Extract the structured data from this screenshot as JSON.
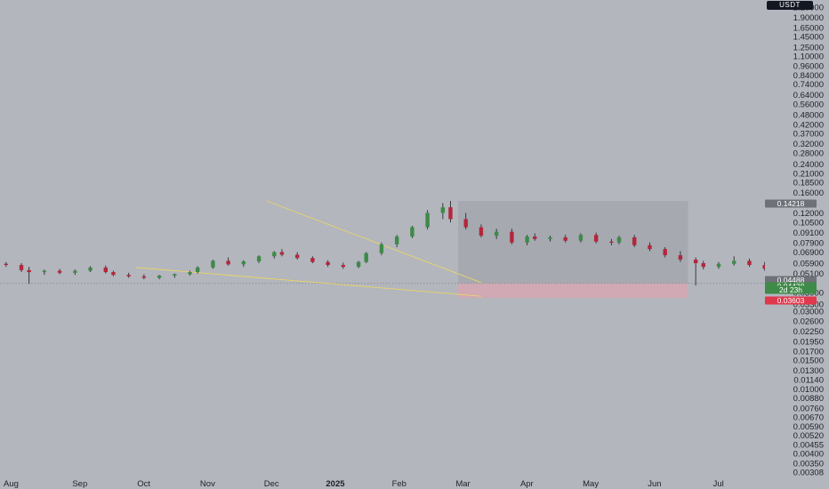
{
  "currency": "USDT",
  "colors": {
    "background": "#b3b6bd",
    "up": "#3e8a48",
    "down": "#b3263c",
    "wedge": "#e9d46a",
    "target_zone": "#a4a7ae",
    "stop_zone": "#d2a9b3"
  },
  "chart_data": {
    "type": "candlestick",
    "y_scale": "log",
    "y_axis_ticks": [
      "2.20000",
      "1.90000",
      "1.65000",
      "1.45000",
      "1.25000",
      "1.10000",
      "0.96000",
      "0.84000",
      "0.74000",
      "0.64000",
      "0.56000",
      "0.48000",
      "0.42000",
      "0.37000",
      "0.32000",
      "0.28000",
      "0.24000",
      "0.21000",
      "0.18500",
      "0.16000",
      "0.12000",
      "0.10500",
      "0.09100",
      "0.07900",
      "0.06900",
      "0.05900",
      "0.05100",
      "0.03900",
      "0.03300",
      "0.03000",
      "0.02600",
      "0.02250",
      "0.01950",
      "0.01700",
      "0.01500",
      "0.01300",
      "0.01140",
      "0.01000",
      "0.00880",
      "0.00760",
      "0.00670",
      "0.00590",
      "0.00520",
      "0.00455",
      "0.00400",
      "0.00350",
      "0.00308"
    ],
    "x_axis_labels": [
      {
        "label": "Aug"
      },
      {
        "label": "Sep"
      },
      {
        "label": "Oct"
      },
      {
        "label": "Nov"
      },
      {
        "label": "Dec"
      },
      {
        "label": "2025",
        "bold": true
      },
      {
        "label": "Feb"
      },
      {
        "label": "Mar"
      },
      {
        "label": "Apr"
      },
      {
        "label": "May"
      },
      {
        "label": "Jun"
      },
      {
        "label": "Jul"
      }
    ],
    "price_tags": [
      {
        "label": "0.14218",
        "value": 0.14218,
        "color": "#6e7178"
      },
      {
        "label": "0.04488",
        "value": 0.04488,
        "color": "#6e7178"
      },
      {
        "label": "0.04438",
        "value": 0.04438,
        "color": "#3e8a48"
      },
      {
        "label": "2d 23h",
        "value": 0.04438,
        "color": "#3e8a48"
      },
      {
        "label": "0.03603",
        "value": 0.03603,
        "color": "#e0384c"
      }
    ],
    "position": {
      "entry": 0.04438,
      "target": 0.14218,
      "stop": 0.03603,
      "start_week": 2025.16,
      "end_week": 2025.46
    },
    "wedge": {
      "upper": [
        [
          2024.91,
          0.14218
        ],
        [
          2025.19,
          0.04488
        ]
      ],
      "lower": [
        [
          2024.74,
          0.0555
        ],
        [
          2025.19,
          0.037
        ]
      ]
    },
    "candles": [
      {
        "t": 2024.55,
        "o": 0.06,
        "h": 0.062,
        "l": 0.057,
        "c": 0.0585
      },
      {
        "t": 2024.57,
        "o": 0.0585,
        "h": 0.06,
        "l": 0.056,
        "c": 0.0575
      },
      {
        "t": 2024.59,
        "o": 0.0575,
        "h": 0.059,
        "l": 0.052,
        "c": 0.0535
      },
      {
        "t": 2024.6,
        "o": 0.0535,
        "h": 0.056,
        "l": 0.044,
        "c": 0.052
      },
      {
        "t": 2024.62,
        "o": 0.052,
        "h": 0.054,
        "l": 0.05,
        "c": 0.053
      },
      {
        "t": 2024.64,
        "o": 0.053,
        "h": 0.0545,
        "l": 0.0505,
        "c": 0.0515
      },
      {
        "t": 2024.66,
        "o": 0.0515,
        "h": 0.054,
        "l": 0.05,
        "c": 0.053
      },
      {
        "t": 2024.68,
        "o": 0.053,
        "h": 0.0565,
        "l": 0.052,
        "c": 0.0555
      },
      {
        "t": 2024.7,
        "o": 0.0555,
        "h": 0.057,
        "l": 0.051,
        "c": 0.052
      },
      {
        "t": 2024.71,
        "o": 0.052,
        "h": 0.053,
        "l": 0.049,
        "c": 0.05
      },
      {
        "t": 2024.73,
        "o": 0.05,
        "h": 0.0515,
        "l": 0.048,
        "c": 0.049
      },
      {
        "t": 2024.75,
        "o": 0.049,
        "h": 0.0505,
        "l": 0.047,
        "c": 0.048
      },
      {
        "t": 2024.77,
        "o": 0.048,
        "h": 0.05,
        "l": 0.047,
        "c": 0.0495
      },
      {
        "t": 2024.79,
        "o": 0.0495,
        "h": 0.051,
        "l": 0.048,
        "c": 0.0505
      },
      {
        "t": 2024.81,
        "o": 0.0505,
        "h": 0.053,
        "l": 0.0495,
        "c": 0.052
      },
      {
        "t": 2024.82,
        "o": 0.052,
        "h": 0.0565,
        "l": 0.051,
        "c": 0.0555
      },
      {
        "t": 2024.84,
        "o": 0.0555,
        "h": 0.062,
        "l": 0.0545,
        "c": 0.061
      },
      {
        "t": 2024.86,
        "o": 0.061,
        "h": 0.064,
        "l": 0.057,
        "c": 0.058
      },
      {
        "t": 2024.88,
        "o": 0.058,
        "h": 0.0615,
        "l": 0.056,
        "c": 0.0605
      },
      {
        "t": 2024.9,
        "o": 0.0605,
        "h": 0.066,
        "l": 0.059,
        "c": 0.065
      },
      {
        "t": 2024.92,
        "o": 0.065,
        "h": 0.07,
        "l": 0.063,
        "c": 0.069
      },
      {
        "t": 2024.93,
        "o": 0.069,
        "h": 0.072,
        "l": 0.065,
        "c": 0.0665
      },
      {
        "t": 2024.95,
        "o": 0.0665,
        "h": 0.069,
        "l": 0.062,
        "c": 0.0635
      },
      {
        "t": 2024.97,
        "o": 0.0635,
        "h": 0.065,
        "l": 0.059,
        "c": 0.06
      },
      {
        "t": 2024.99,
        "o": 0.06,
        "h": 0.0615,
        "l": 0.056,
        "c": 0.0575
      },
      {
        "t": 2025.01,
        "o": 0.0575,
        "h": 0.0595,
        "l": 0.0545,
        "c": 0.056
      },
      {
        "t": 2025.03,
        "o": 0.056,
        "h": 0.061,
        "l": 0.055,
        "c": 0.06
      },
      {
        "t": 2025.04,
        "o": 0.06,
        "h": 0.069,
        "l": 0.059,
        "c": 0.068
      },
      {
        "t": 2025.06,
        "o": 0.068,
        "h": 0.079,
        "l": 0.066,
        "c": 0.077
      },
      {
        "t": 2025.08,
        "o": 0.077,
        "h": 0.088,
        "l": 0.074,
        "c": 0.086
      },
      {
        "t": 2025.1,
        "o": 0.086,
        "h": 0.1,
        "l": 0.084,
        "c": 0.098
      },
      {
        "t": 2025.12,
        "o": 0.098,
        "h": 0.125,
        "l": 0.095,
        "c": 0.12
      },
      {
        "t": 2025.14,
        "o": 0.12,
        "h": 0.138,
        "l": 0.11,
        "c": 0.13
      },
      {
        "t": 2025.15,
        "o": 0.13,
        "h": 0.1422,
        "l": 0.105,
        "c": 0.11
      },
      {
        "t": 2025.17,
        "o": 0.11,
        "h": 0.12,
        "l": 0.095,
        "c": 0.098
      },
      {
        "t": 2025.19,
        "o": 0.098,
        "h": 0.102,
        "l": 0.085,
        "c": 0.087
      },
      {
        "t": 2025.21,
        "o": 0.087,
        "h": 0.096,
        "l": 0.083,
        "c": 0.092
      },
      {
        "t": 2025.23,
        "o": 0.092,
        "h": 0.096,
        "l": 0.077,
        "c": 0.079
      },
      {
        "t": 2025.25,
        "o": 0.079,
        "h": 0.088,
        "l": 0.076,
        "c": 0.086
      },
      {
        "t": 2025.26,
        "o": 0.086,
        "h": 0.09,
        "l": 0.081,
        "c": 0.083
      },
      {
        "t": 2025.28,
        "o": 0.083,
        "h": 0.087,
        "l": 0.08,
        "c": 0.085
      },
      {
        "t": 2025.3,
        "o": 0.085,
        "h": 0.088,
        "l": 0.079,
        "c": 0.081
      },
      {
        "t": 2025.32,
        "o": 0.081,
        "h": 0.09,
        "l": 0.079,
        "c": 0.088
      },
      {
        "t": 2025.34,
        "o": 0.088,
        "h": 0.091,
        "l": 0.078,
        "c": 0.08
      },
      {
        "t": 2025.36,
        "o": 0.08,
        "h": 0.083,
        "l": 0.076,
        "c": 0.079
      },
      {
        "t": 2025.37,
        "o": 0.079,
        "h": 0.087,
        "l": 0.077,
        "c": 0.085
      },
      {
        "t": 2025.39,
        "o": 0.085,
        "h": 0.088,
        "l": 0.074,
        "c": 0.076
      },
      {
        "t": 2025.41,
        "o": 0.076,
        "h": 0.079,
        "l": 0.07,
        "c": 0.072
      },
      {
        "t": 2025.43,
        "o": 0.072,
        "h": 0.074,
        "l": 0.064,
        "c": 0.066
      },
      {
        "t": 2025.45,
        "o": 0.066,
        "h": 0.07,
        "l": 0.06,
        "c": 0.062
      },
      {
        "t": 2025.47,
        "o": 0.062,
        "h": 0.064,
        "l": 0.043,
        "c": 0.059
      },
      {
        "t": 2025.48,
        "o": 0.059,
        "h": 0.061,
        "l": 0.054,
        "c": 0.056
      },
      {
        "t": 2025.5,
        "o": 0.056,
        "h": 0.06,
        "l": 0.0545,
        "c": 0.0585
      },
      {
        "t": 2025.52,
        "o": 0.0585,
        "h": 0.065,
        "l": 0.057,
        "c": 0.061
      },
      {
        "t": 2025.54,
        "o": 0.061,
        "h": 0.063,
        "l": 0.056,
        "c": 0.0575
      },
      {
        "t": 2025.56,
        "o": 0.0575,
        "h": 0.06,
        "l": 0.053,
        "c": 0.0545
      },
      {
        "t": 2025.58,
        "o": 0.0545,
        "h": 0.056,
        "l": 0.0495,
        "c": 0.0505
      },
      {
        "t": 2025.59,
        "o": 0.0505,
        "h": 0.053,
        "l": 0.047,
        "c": 0.0495
      },
      {
        "t": 2025.61,
        "o": 0.0495,
        "h": 0.053,
        "l": 0.046,
        "c": 0.048
      },
      {
        "t": 2025.63,
        "o": 0.048,
        "h": 0.051,
        "l": 0.045,
        "c": 0.047
      },
      {
        "t": 2025.65,
        "o": 0.047,
        "h": 0.05,
        "l": 0.044,
        "c": 0.0455
      },
      {
        "t": 2025.67,
        "o": 0.0455,
        "h": 0.048,
        "l": 0.04,
        "c": 0.0415
      },
      {
        "t": 2025.69,
        "o": 0.0415,
        "h": 0.046,
        "l": 0.0395,
        "c": 0.043
      },
      {
        "t": 2025.7,
        "o": 0.043,
        "h": 0.047,
        "l": 0.042,
        "c": 0.0445
      }
    ]
  }
}
